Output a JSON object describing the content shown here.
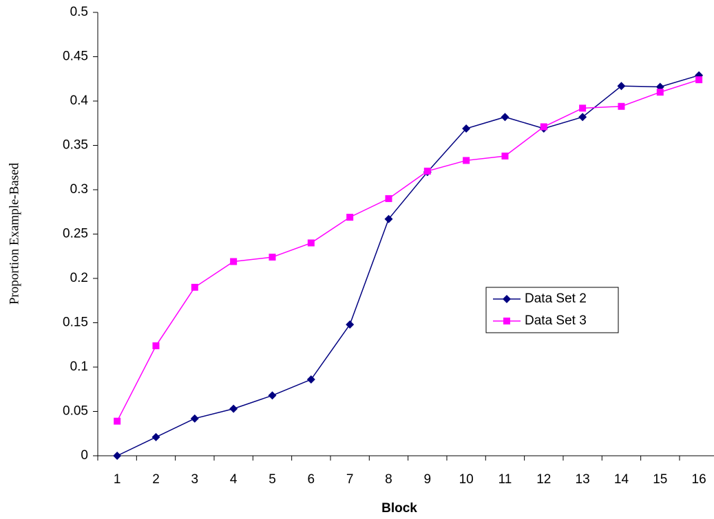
{
  "chart_data": {
    "type": "line",
    "x_label": "Block",
    "y_label": "Proportion Example-Based",
    "categories": [
      "1",
      "2",
      "3",
      "4",
      "5",
      "6",
      "7",
      "8",
      "9",
      "10",
      "11",
      "12",
      "13",
      "14",
      "15",
      "16"
    ],
    "series": [
      {
        "name": "Data Set 2",
        "color": "#000080",
        "marker": "diamond",
        "values": [
          0,
          0.021,
          0.042,
          0.053,
          0.068,
          0.086,
          0.148,
          0.267,
          0.32,
          0.369,
          0.382,
          0.369,
          0.382,
          0.417,
          0.416,
          0.429
        ]
      },
      {
        "name": "Data Set 3",
        "color": "#ff00ff",
        "marker": "square",
        "values": [
          0.039,
          0.124,
          0.19,
          0.219,
          0.224,
          0.24,
          0.269,
          0.29,
          0.321,
          0.333,
          0.338,
          0.371,
          0.392,
          0.394,
          0.41,
          0.424
        ]
      }
    ],
    "ylim": [
      0,
      0.5
    ],
    "yticks": [
      0,
      0.05,
      0.1,
      0.15,
      0.2,
      0.25,
      0.3,
      0.35,
      0.4,
      0.45,
      0.5
    ],
    "grid": false,
    "legend": "right"
  }
}
